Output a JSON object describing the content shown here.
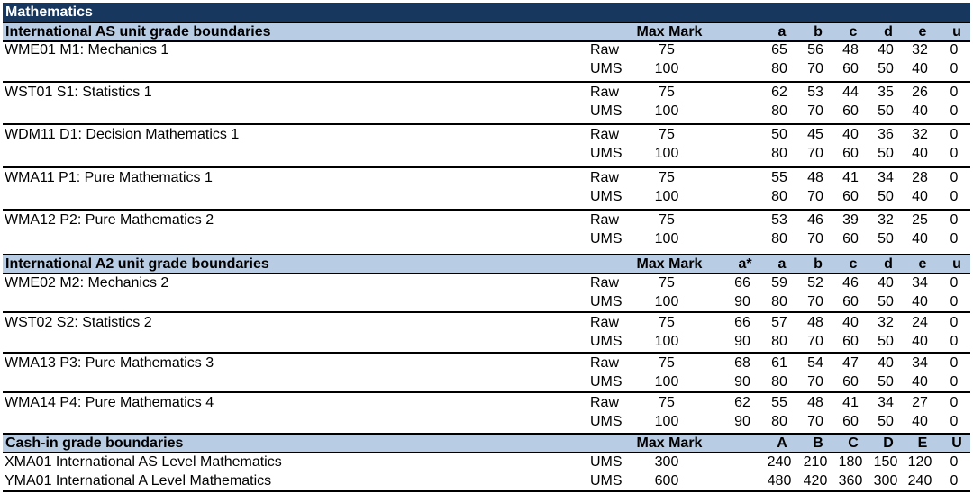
{
  "title": "Mathematics",
  "as_section": {
    "header": {
      "label": "International AS unit grade boundaries",
      "max_mark": "Max Mark",
      "a": "a",
      "b": "b",
      "c": "c",
      "d": "d",
      "e": "e",
      "u": "u"
    },
    "units": [
      {
        "name": "WME01  M1: Mechanics 1",
        "raw": {
          "type": "Raw",
          "max": "75",
          "a": "65",
          "b": "56",
          "c": "48",
          "d": "40",
          "e": "32",
          "u": "0"
        },
        "ums": {
          "type": "UMS",
          "max": "100",
          "a": "80",
          "b": "70",
          "c": "60",
          "d": "50",
          "e": "40",
          "u": "0"
        }
      },
      {
        "name": "WST01  S1: Statistics 1",
        "raw": {
          "type": "Raw",
          "max": "75",
          "a": "62",
          "b": "53",
          "c": "44",
          "d": "35",
          "e": "26",
          "u": "0"
        },
        "ums": {
          "type": "UMS",
          "max": "100",
          "a": "80",
          "b": "70",
          "c": "60",
          "d": "50",
          "e": "40",
          "u": "0"
        }
      },
      {
        "name": "WDM11  D1: Decision Mathematics 1",
        "raw": {
          "type": "Raw",
          "max": "75",
          "a": "50",
          "b": "45",
          "c": "40",
          "d": "36",
          "e": "32",
          "u": "0"
        },
        "ums": {
          "type": "UMS",
          "max": "100",
          "a": "80",
          "b": "70",
          "c": "60",
          "d": "50",
          "e": "40",
          "u": "0"
        }
      },
      {
        "name": "WMA11  P1: Pure Mathematics 1",
        "raw": {
          "type": "Raw",
          "max": "75",
          "a": "55",
          "b": "48",
          "c": "41",
          "d": "34",
          "e": "28",
          "u": "0"
        },
        "ums": {
          "type": "UMS",
          "max": "100",
          "a": "80",
          "b": "70",
          "c": "60",
          "d": "50",
          "e": "40",
          "u": "0"
        }
      },
      {
        "name": "WMA12  P2: Pure Mathematics 2",
        "raw": {
          "type": "Raw",
          "max": "75",
          "a": "53",
          "b": "46",
          "c": "39",
          "d": "32",
          "e": "25",
          "u": "0"
        },
        "ums": {
          "type": "UMS",
          "max": "100",
          "a": "80",
          "b": "70",
          "c": "60",
          "d": "50",
          "e": "40",
          "u": "0"
        }
      }
    ]
  },
  "a2_section": {
    "header": {
      "label": "International A2 unit grade boundaries",
      "max_mark": "Max Mark",
      "astar": "a*",
      "a": "a",
      "b": "b",
      "c": "c",
      "d": "d",
      "e": "e",
      "u": "u"
    },
    "units": [
      {
        "name": "WME02  M2: Mechanics 2",
        "raw": {
          "type": "Raw",
          "max": "75",
          "astar": "66",
          "a": "59",
          "b": "52",
          "c": "46",
          "d": "40",
          "e": "34",
          "u": "0"
        },
        "ums": {
          "type": "UMS",
          "max": "100",
          "astar": "90",
          "a": "80",
          "b": "70",
          "c": "60",
          "d": "50",
          "e": "40",
          "u": "0"
        }
      },
      {
        "name": "WST02  S2: Statistics 2",
        "raw": {
          "type": "Raw",
          "max": "75",
          "astar": "66",
          "a": "57",
          "b": "48",
          "c": "40",
          "d": "32",
          "e": "24",
          "u": "0"
        },
        "ums": {
          "type": "UMS",
          "max": "100",
          "astar": "90",
          "a": "80",
          "b": "70",
          "c": "60",
          "d": "50",
          "e": "40",
          "u": "0"
        }
      },
      {
        "name": "WMA13  P3: Pure Mathematics 3",
        "raw": {
          "type": "Raw",
          "max": "75",
          "astar": "68",
          "a": "61",
          "b": "54",
          "c": "47",
          "d": "40",
          "e": "34",
          "u": "0"
        },
        "ums": {
          "type": "UMS",
          "max": "100",
          "astar": "90",
          "a": "80",
          "b": "70",
          "c": "60",
          "d": "50",
          "e": "40",
          "u": "0"
        }
      },
      {
        "name": "WMA14  P4: Pure Mathematics 4",
        "raw": {
          "type": "Raw",
          "max": "75",
          "astar": "62",
          "a": "55",
          "b": "48",
          "c": "41",
          "d": "34",
          "e": "27",
          "u": "0"
        },
        "ums": {
          "type": "UMS",
          "max": "100",
          "astar": "90",
          "a": "80",
          "b": "70",
          "c": "60",
          "d": "50",
          "e": "40",
          "u": "0"
        }
      }
    ]
  },
  "cashin_section": {
    "header": {
      "label": "Cash-in grade boundaries",
      "max_mark": "Max Mark",
      "a": "A",
      "b": "B",
      "c": "C",
      "d": "D",
      "e": "E",
      "u": "U"
    },
    "rows": [
      {
        "name": "XMA01   International AS Level Mathematics",
        "type": "UMS",
        "max": "300",
        "a": "240",
        "b": "210",
        "c": "180",
        "d": "150",
        "e": "120",
        "u": "0"
      },
      {
        "name": "YMA01   International A Level Mathematics",
        "type": "UMS",
        "max": "600",
        "a": "480",
        "b": "420",
        "c": "360",
        "d": "300",
        "e": "240",
        "u": "0"
      }
    ]
  }
}
